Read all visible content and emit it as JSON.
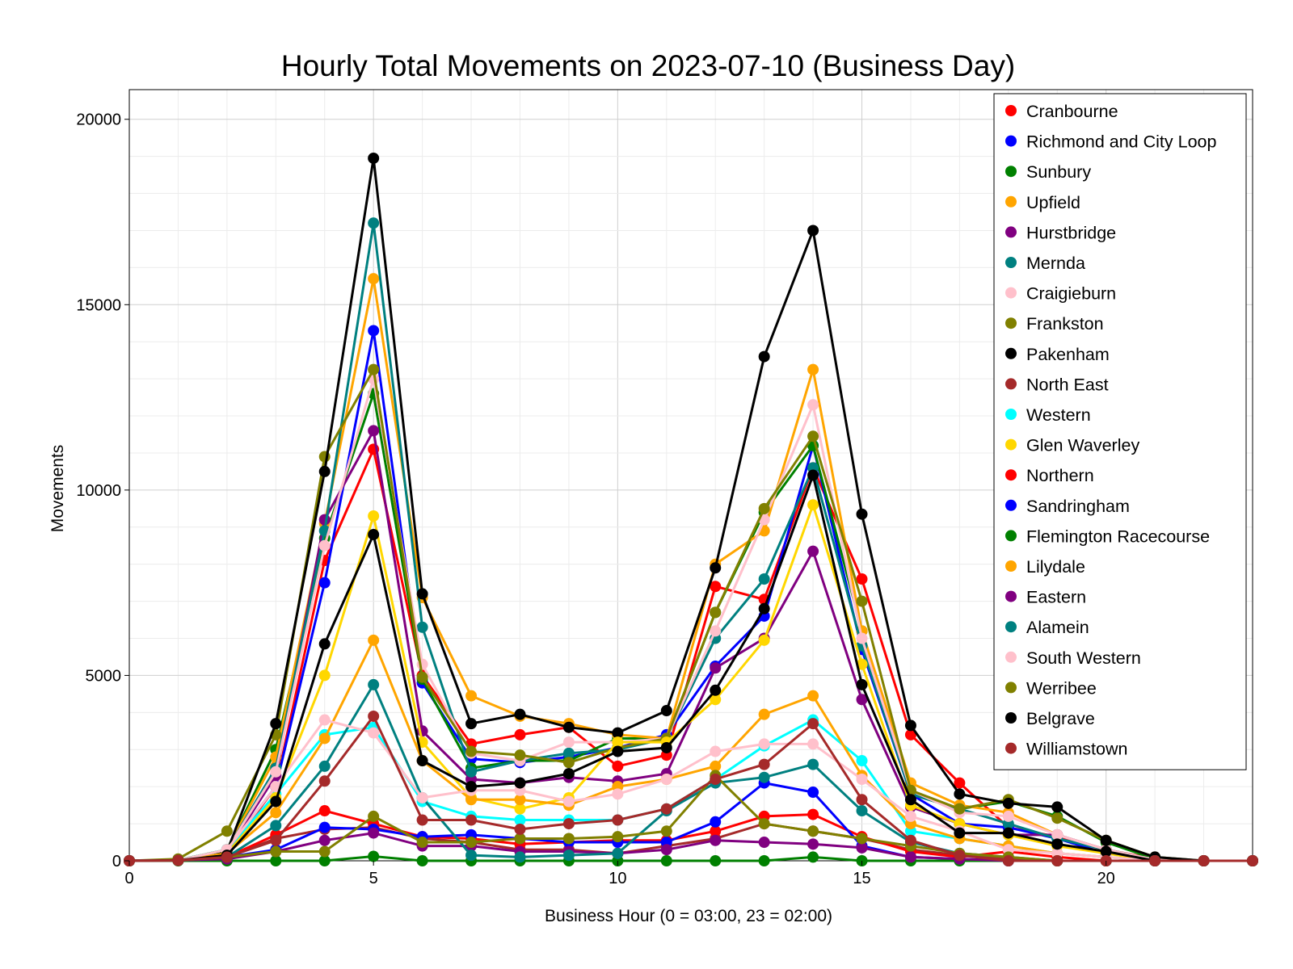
{
  "chart_data": {
    "type": "line",
    "title": "Hourly Total Movements on 2023-07-10 (Business Day)",
    "xlabel": "Business Hour (0 = 03:00, 23 = 02:00)",
    "ylabel": "Movements",
    "xlim": [
      0,
      23
    ],
    "ylim": [
      0,
      20800
    ],
    "xticks": [
      0,
      5,
      10,
      15,
      20
    ],
    "yticks": [
      0,
      5000,
      10000,
      15000,
      20000
    ],
    "grid": true,
    "legend_position": "top-right",
    "x": [
      0,
      1,
      2,
      3,
      4,
      5,
      6,
      7,
      8,
      9,
      10,
      11,
      12,
      13,
      14,
      15,
      16,
      17,
      18,
      19,
      20,
      21,
      22,
      23
    ],
    "series": [
      {
        "name": "Cranbourne",
        "color": "#ff0000",
        "values": [
          0,
          20,
          200,
          2000,
          8100,
          11100,
          5000,
          3150,
          3400,
          3600,
          2550,
          2850,
          7400,
          7050,
          10600,
          7600,
          3400,
          2100,
          900,
          650,
          300,
          50,
          0,
          0
        ]
      },
      {
        "name": "Richmond and City Loop",
        "color": "#0000ff",
        "values": [
          0,
          10,
          300,
          2000,
          7500,
          14300,
          4800,
          2750,
          2650,
          2800,
          3050,
          3400,
          5250,
          6600,
          11200,
          5700,
          1800,
          1000,
          900,
          600,
          200,
          30,
          0,
          0
        ]
      },
      {
        "name": "Sunbury",
        "color": "#008000",
        "values": [
          0,
          20,
          300,
          3000,
          8700,
          12600,
          4900,
          2500,
          2700,
          2700,
          3300,
          3300,
          6700,
          9400,
          11200,
          6200,
          1800,
          1400,
          1600,
          1200,
          500,
          50,
          0,
          0
        ]
      },
      {
        "name": "Upfield",
        "color": "#ffa500",
        "values": [
          0,
          10,
          300,
          2800,
          9100,
          15700,
          7100,
          4450,
          3900,
          3700,
          3400,
          3300,
          8000,
          8900,
          13250,
          6200,
          2100,
          1500,
          1300,
          700,
          300,
          30,
          0,
          0
        ]
      },
      {
        "name": "Hurstbridge",
        "color": "#800080",
        "values": [
          0,
          10,
          250,
          2300,
          9200,
          11600,
          3500,
          2200,
          2100,
          2250,
          2150,
          2350,
          5200,
          6000,
          8350,
          4350,
          1450,
          1000,
          700,
          700,
          300,
          30,
          0,
          0
        ]
      },
      {
        "name": "Mernda",
        "color": "#008080",
        "values": [
          0,
          10,
          300,
          2500,
          8900,
          17200,
          6300,
          2400,
          2700,
          2900,
          3000,
          3300,
          6000,
          7600,
          10600,
          5800,
          1800,
          1400,
          1000,
          600,
          300,
          30,
          0,
          0
        ]
      },
      {
        "name": "Craigieburn",
        "color": "#ffc0cb",
        "values": [
          0,
          10,
          300,
          2400,
          8500,
          13000,
          5300,
          2900,
          2700,
          3200,
          3200,
          3300,
          6200,
          9200,
          12300,
          6000,
          1900,
          1300,
          1200,
          700,
          300,
          30,
          0,
          0
        ]
      },
      {
        "name": "Frankston",
        "color": "#808000",
        "values": [
          0,
          50,
          800,
          3400,
          10900,
          13250,
          4950,
          2950,
          2850,
          2650,
          3050,
          3300,
          6700,
          9500,
          11450,
          7000,
          1900,
          1400,
          1650,
          1150,
          550,
          100,
          0,
          0
        ]
      },
      {
        "name": "Pakenham",
        "color": "#000000",
        "values": [
          0,
          10,
          250,
          3700,
          10500,
          18950,
          7200,
          3700,
          3950,
          3600,
          3450,
          4050,
          7900,
          13600,
          17000,
          9350,
          3650,
          1800,
          1550,
          1450,
          550,
          100,
          0,
          0
        ]
      },
      {
        "name": "North East",
        "color": "#a52a2a",
        "values": [
          0,
          10,
          100,
          600,
          850,
          900,
          600,
          500,
          300,
          300,
          200,
          400,
          600,
          1000,
          800,
          600,
          300,
          150,
          50,
          0,
          0,
          0,
          0,
          0
        ]
      },
      {
        "name": "Western",
        "color": "#00ffff",
        "values": [
          0,
          10,
          300,
          1800,
          3400,
          3600,
          1600,
          1200,
          1100,
          1100,
          1100,
          1400,
          2200,
          3100,
          3800,
          2700,
          800,
          600,
          400,
          200,
          100,
          0,
          0,
          0
        ]
      },
      {
        "name": "Glen Waverley",
        "color": "#ffd700",
        "values": [
          0,
          10,
          200,
          1700,
          5000,
          9300,
          3200,
          1700,
          1400,
          1700,
          3200,
          3200,
          4350,
          5950,
          9600,
          5300,
          1500,
          1000,
          700,
          400,
          200,
          0,
          0,
          0
        ]
      },
      {
        "name": "Northern",
        "color": "#ff0000",
        "values": [
          0,
          10,
          100,
          700,
          1350,
          1000,
          650,
          600,
          450,
          500,
          550,
          550,
          800,
          1200,
          1250,
          650,
          250,
          100,
          250,
          100,
          0,
          0,
          0,
          0
        ]
      },
      {
        "name": "Sandringham",
        "color": "#0000ff",
        "values": [
          0,
          10,
          100,
          300,
          900,
          850,
          650,
          700,
          600,
          500,
          500,
          500,
          1050,
          2100,
          1850,
          400,
          100,
          50,
          0,
          0,
          0,
          0,
          0,
          0
        ]
      },
      {
        "name": "Flemington Racecourse",
        "color": "#008000",
        "values": [
          0,
          0,
          0,
          0,
          0,
          120,
          0,
          0,
          0,
          0,
          0,
          0,
          0,
          0,
          100,
          0,
          0,
          0,
          0,
          0,
          0,
          0,
          0,
          0
        ]
      },
      {
        "name": "Lilydale",
        "color": "#ffa500",
        "values": [
          0,
          10,
          200,
          1300,
          3300,
          5950,
          2700,
          1650,
          1650,
          1500,
          2000,
          2200,
          2550,
          3950,
          4450,
          2300,
          1000,
          600,
          400,
          200,
          100,
          0,
          0,
          0
        ]
      },
      {
        "name": "Eastern",
        "color": "#800080",
        "values": [
          0,
          10,
          50,
          250,
          550,
          750,
          400,
          400,
          250,
          250,
          200,
          300,
          550,
          500,
          450,
          350,
          100,
          50,
          0,
          0,
          0,
          0,
          0,
          0
        ]
      },
      {
        "name": "Alamein",
        "color": "#008080",
        "values": [
          0,
          10,
          100,
          950,
          2550,
          4750,
          1700,
          150,
          100,
          150,
          200,
          1350,
          2100,
          2250,
          2600,
          1350,
          500,
          200,
          100,
          0,
          0,
          0,
          0,
          0
        ]
      },
      {
        "name": "South Western",
        "color": "#ffc0cb",
        "values": [
          0,
          10,
          300,
          2000,
          3800,
          3450,
          1700,
          1900,
          1900,
          1600,
          1800,
          2200,
          2950,
          3150,
          3150,
          2200,
          1200,
          800,
          300,
          200,
          100,
          0,
          0,
          0
        ]
      },
      {
        "name": "Werribee",
        "color": "#808000",
        "values": [
          0,
          10,
          100,
          250,
          250,
          1200,
          500,
          500,
          600,
          600,
          650,
          800,
          2300,
          1000,
          800,
          600,
          400,
          200,
          100,
          0,
          0,
          0,
          0,
          0
        ]
      },
      {
        "name": "Belgrave",
        "color": "#000000",
        "values": [
          0,
          10,
          150,
          1600,
          5850,
          8800,
          2700,
          2000,
          2100,
          2350,
          2950,
          3050,
          4600,
          6800,
          10400,
          4750,
          1650,
          750,
          750,
          450,
          250,
          0,
          0,
          0
        ]
      },
      {
        "name": "Williamstown",
        "color": "#a52a2a",
        "values": [
          0,
          10,
          100,
          550,
          2150,
          3900,
          1100,
          1100,
          850,
          1000,
          1100,
          1400,
          2200,
          2600,
          3700,
          1650,
          550,
          150,
          0,
          0,
          0,
          0,
          0,
          0
        ]
      }
    ]
  }
}
